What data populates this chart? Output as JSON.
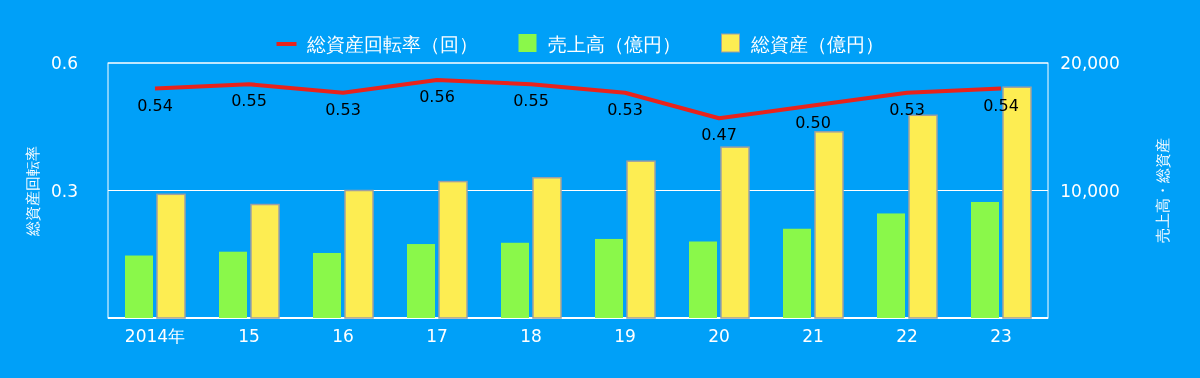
{
  "chart_data": {
    "type": "bar",
    "categories": [
      "2014年",
      "15",
      "16",
      "17",
      "18",
      "19",
      "20",
      "21",
      "22",
      "23"
    ],
    "series": [
      {
        "name": "総資産回転率（回）",
        "type": "line",
        "color": "#e8231c",
        "values": [
          0.54,
          0.55,
          0.53,
          0.56,
          0.55,
          0.53,
          0.47,
          0.5,
          0.53,
          0.54
        ],
        "value_labels": [
          "0.54",
          "0.55",
          "0.53",
          "0.56",
          "0.55",
          "0.53",
          "0.47",
          "0.50",
          "0.53",
          "0.54"
        ]
      },
      {
        "name": "売上高（億円）",
        "axis": "y2",
        "color": "#8af84a",
        "values": [
          4900,
          5200,
          5100,
          5800,
          5900,
          6200,
          6000,
          7000,
          8200,
          9100
        ]
      },
      {
        "name": "総資産（億円）",
        "axis": "y2",
        "color": "#fded52",
        "values": [
          9700,
          8900,
          10000,
          10700,
          11000,
          12300,
          13400,
          14600,
          15900,
          18100
        ]
      }
    ],
    "ylabel": "総資産回転率",
    "y2label": "売上高・総資産",
    "ylim": [
      0,
      0.6
    ],
    "yticks": [
      0.3,
      0.6
    ],
    "y2lim": [
      0,
      20000
    ],
    "y2ticks": [
      {
        "value": 10000,
        "label": "10,000"
      },
      {
        "value": 20000,
        "label": "20,000"
      }
    ],
    "grid": "y",
    "legend": "top"
  }
}
